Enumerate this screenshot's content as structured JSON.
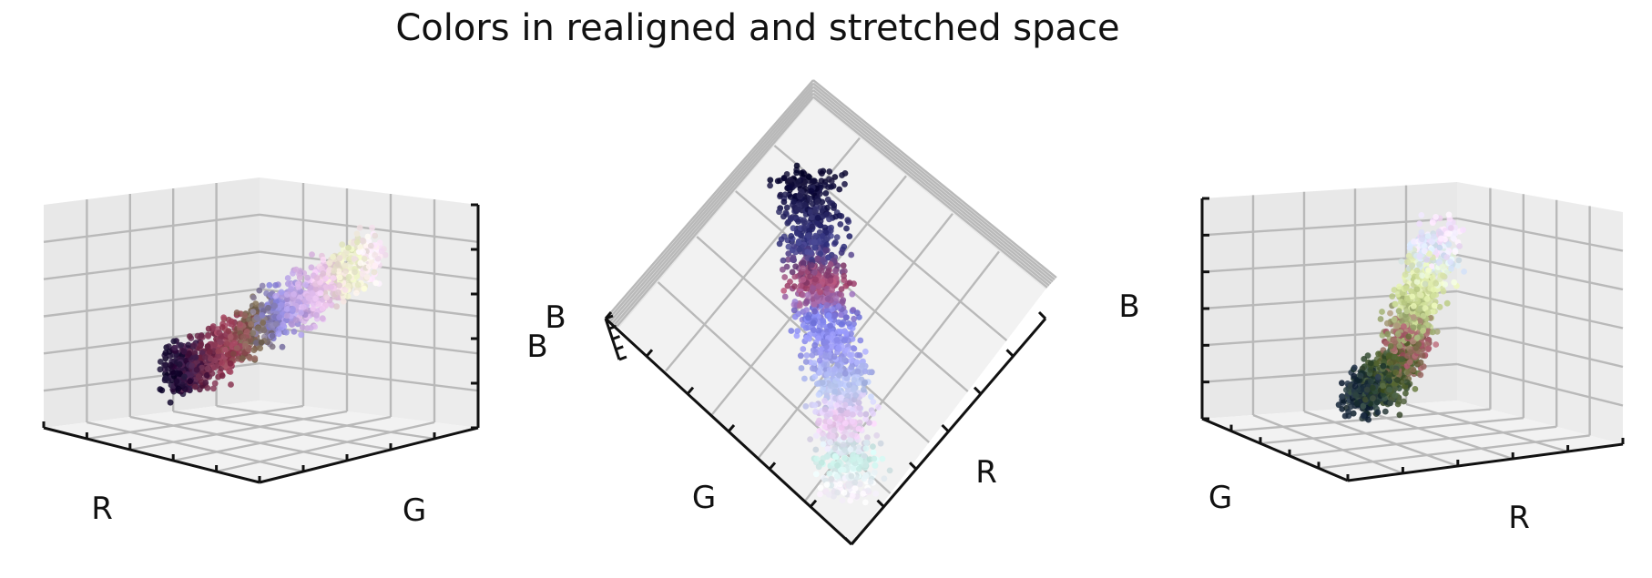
{
  "title": "Colors in realigned and stretched space",
  "chart_data": [
    {
      "type": "scatter",
      "projection": "3d",
      "title": "",
      "xlabel": "R",
      "ylabel": "G",
      "zlabel": "B",
      "grid": true,
      "view": "front-left elevated",
      "series": [
        {
          "marker_colors": [
            "#120a2e",
            "#3a1646",
            "#6a2a4a",
            "#a0405a",
            "#7a6a50",
            "#8a86e0",
            "#c8a8e0",
            "#f0c8ee",
            "#e8f0c0",
            "#ffe6ff"
          ],
          "points": [
            [
              -0.55,
              -0.5,
              -0.55
            ],
            [
              -0.45,
              -0.42,
              -0.48
            ],
            [
              -0.35,
              -0.35,
              -0.4
            ],
            [
              -0.2,
              -0.25,
              -0.25
            ],
            [
              -0.05,
              -0.1,
              -0.1
            ],
            [
              0.1,
              0.05,
              0.05
            ],
            [
              0.25,
              0.2,
              0.2
            ],
            [
              0.4,
              0.35,
              0.35
            ],
            [
              0.55,
              0.5,
              0.5
            ],
            [
              0.7,
              0.6,
              0.65
            ]
          ]
        }
      ]
    },
    {
      "type": "scatter",
      "projection": "3d",
      "title": "",
      "xlabel": "R",
      "ylabel": "G",
      "zlabel": "B",
      "grid": true,
      "view": "top-down",
      "series": [
        {
          "marker_colors": [
            "#0e0a30",
            "#22205a",
            "#3c3c8a",
            "#b04a70",
            "#7a7ee8",
            "#9a98f0",
            "#b8c8f0",
            "#f0c8f0",
            "#c8f0e8",
            "#fff0ff"
          ],
          "points": [
            [
              -0.6,
              -0.6,
              0.1
            ],
            [
              -0.45,
              -0.45,
              0.05
            ],
            [
              -0.3,
              -0.3,
              0.0
            ],
            [
              -0.15,
              -0.2,
              -0.05
            ],
            [
              0.0,
              0.0,
              0.0
            ],
            [
              0.15,
              0.1,
              0.05
            ],
            [
              0.3,
              0.25,
              0.1
            ],
            [
              0.45,
              0.4,
              0.05
            ],
            [
              0.6,
              0.5,
              0.0
            ],
            [
              0.75,
              0.65,
              -0.05
            ]
          ]
        }
      ]
    },
    {
      "type": "scatter",
      "projection": "3d",
      "title": "",
      "xlabel": "R",
      "ylabel": "G",
      "zlabel": "B",
      "grid": true,
      "view": "rear-right elevated",
      "series": [
        {
          "marker_colors": [
            "#ffe0ff",
            "#d8e8ff",
            "#e6f0b8",
            "#c8d890",
            "#9aa870",
            "#b05a70",
            "#5a6a30",
            "#2e4838",
            "#1a2a40",
            "#4a5a28"
          ],
          "points": [
            [
              0.6,
              -0.2,
              0.55
            ],
            [
              0.45,
              -0.1,
              0.45
            ],
            [
              0.3,
              0.0,
              0.35
            ],
            [
              0.15,
              0.05,
              0.2
            ],
            [
              0.0,
              0.1,
              0.05
            ],
            [
              -0.1,
              0.3,
              0.0
            ],
            [
              -0.2,
              0.2,
              -0.2
            ],
            [
              -0.35,
              0.05,
              -0.3
            ],
            [
              -0.5,
              -0.05,
              -0.4
            ],
            [
              -0.3,
              0.25,
              -0.45
            ]
          ]
        }
      ]
    }
  ]
}
